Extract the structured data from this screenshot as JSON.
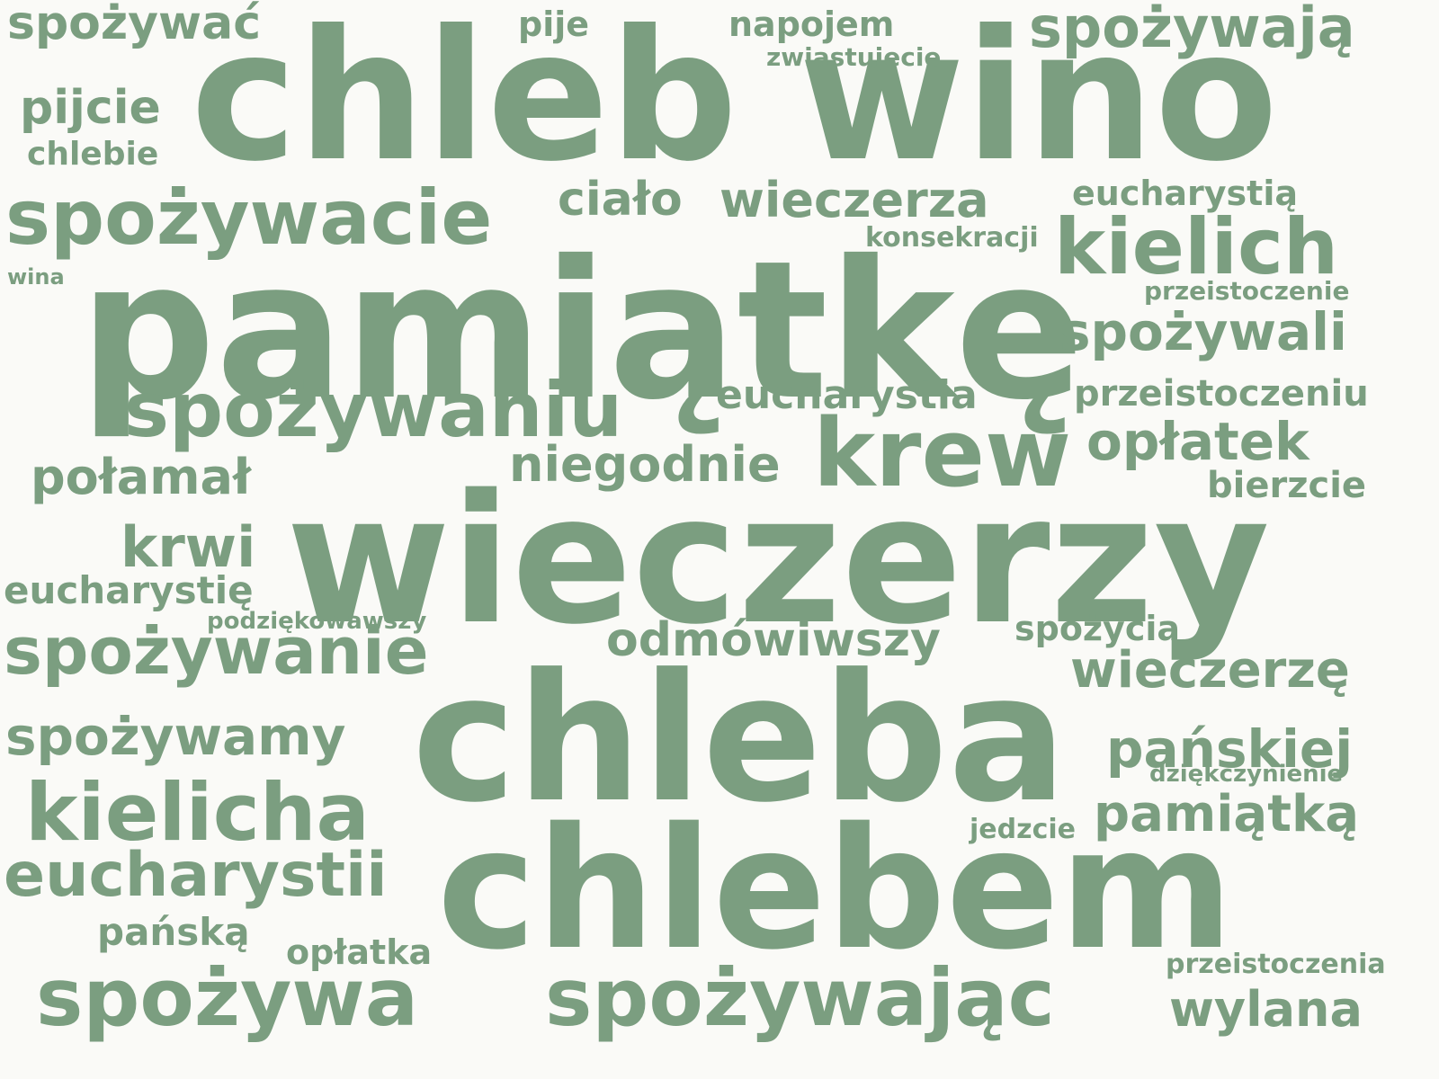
{
  "word_color": "#7b9e80",
  "background_color": "#fafaf7",
  "words": [
    {
      "text": "wieczerzy",
      "weight": 100
    },
    {
      "text": "pamiątkę",
      "weight": 96
    },
    {
      "text": "chlebem",
      "weight": 90
    },
    {
      "text": "chleba",
      "weight": 88
    },
    {
      "text": "chleb",
      "weight": 80
    },
    {
      "text": "wino",
      "weight": 80
    },
    {
      "text": "krew",
      "weight": 44
    },
    {
      "text": "spożywaniu",
      "weight": 36
    },
    {
      "text": "spożywacie",
      "weight": 36
    },
    {
      "text": "spożywa",
      "weight": 34
    },
    {
      "text": "spożywając",
      "weight": 34
    },
    {
      "text": "kielicha",
      "weight": 34
    },
    {
      "text": "kielich",
      "weight": 34
    },
    {
      "text": "spożywanie",
      "weight": 28
    },
    {
      "text": "eucharystii",
      "weight": 28
    },
    {
      "text": "spożywają",
      "weight": 24
    },
    {
      "text": "krwi",
      "weight": 24
    },
    {
      "text": "spożywamy",
      "weight": 22
    },
    {
      "text": "pańskiej",
      "weight": 22
    },
    {
      "text": "pamiątką",
      "weight": 22
    },
    {
      "text": "opłatek",
      "weight": 22
    },
    {
      "text": "spożywali",
      "weight": 22
    },
    {
      "text": "wieczerzę",
      "weight": 22
    },
    {
      "text": "wieczerza",
      "weight": 22
    },
    {
      "text": "wylana",
      "weight": 20
    },
    {
      "text": "niegodnie",
      "weight": 20
    },
    {
      "text": "połamał",
      "weight": 20
    },
    {
      "text": "pijcie",
      "weight": 20
    },
    {
      "text": "ciało",
      "weight": 20
    },
    {
      "text": "spożywać",
      "weight": 20
    },
    {
      "text": "odmówiwszy",
      "weight": 20
    },
    {
      "text": "eucharystia",
      "weight": 16
    },
    {
      "text": "przeistoczeniu",
      "weight": 16
    },
    {
      "text": "eucharystię",
      "weight": 16
    },
    {
      "text": "pańską",
      "weight": 15
    },
    {
      "text": "bierzcie",
      "weight": 14
    },
    {
      "text": "napojem",
      "weight": 14
    },
    {
      "text": "opłatka",
      "weight": 14
    },
    {
      "text": "spożycia",
      "weight": 14
    },
    {
      "text": "eucharystią",
      "weight": 14
    },
    {
      "text": "pije",
      "weight": 12
    },
    {
      "text": "chlebie",
      "weight": 12
    },
    {
      "text": "konsekracji",
      "weight": 10
    },
    {
      "text": "jedzcie",
      "weight": 10
    },
    {
      "text": "przeistoczenie",
      "weight": 9
    },
    {
      "text": "przeistoczenia",
      "weight": 9
    },
    {
      "text": "zwiastujecie",
      "weight": 9
    },
    {
      "text": "dziękczynienie",
      "weight": 8
    },
    {
      "text": "podziękowawszy",
      "weight": 8
    },
    {
      "text": "wina",
      "weight": 8
    }
  ]
}
